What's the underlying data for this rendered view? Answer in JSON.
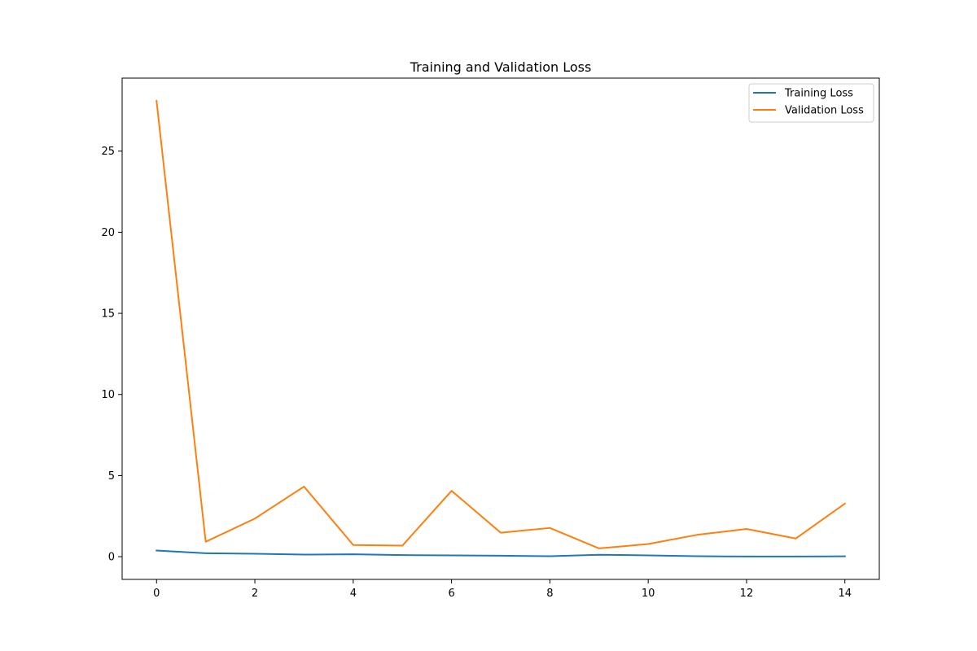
{
  "chart_data": {
    "type": "line",
    "title": "Training and Validation Loss",
    "xlabel": "",
    "ylabel": "",
    "xlim": [
      -0.7,
      14.7
    ],
    "ylim": [
      -1.4,
      29.5
    ],
    "xticks": [
      0,
      2,
      4,
      6,
      8,
      10,
      12,
      14
    ],
    "yticks": [
      0,
      5,
      10,
      15,
      20,
      25
    ],
    "grid": false,
    "legend_position": "top-right",
    "x": [
      0,
      1,
      2,
      3,
      4,
      5,
      6,
      7,
      8,
      9,
      10,
      11,
      12,
      13,
      14
    ],
    "series": [
      {
        "name": "Training Loss",
        "color": "#1f77b4",
        "values": [
          0.38,
          0.21,
          0.18,
          0.13,
          0.15,
          0.1,
          0.08,
          0.06,
          0.03,
          0.12,
          0.08,
          0.03,
          0.01,
          0.01,
          0.02
        ]
      },
      {
        "name": "Validation Loss",
        "color": "#ff7f0e",
        "values": [
          28.1,
          0.92,
          2.35,
          4.32,
          0.72,
          0.68,
          4.06,
          1.48,
          1.77,
          0.51,
          0.78,
          1.35,
          1.71,
          1.12,
          3.27
        ]
      }
    ]
  }
}
